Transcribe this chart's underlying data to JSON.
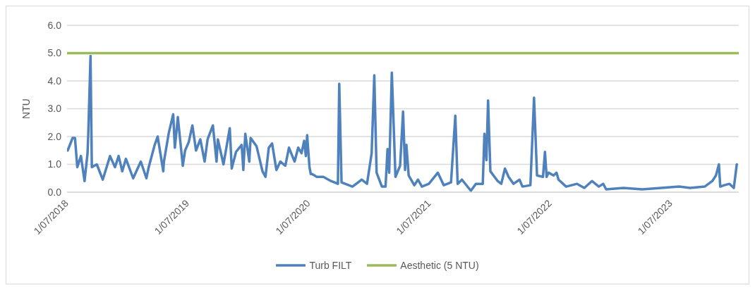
{
  "chart_data": {
    "type": "line",
    "ylabel": "NTU",
    "xlim": [
      "2018-07-01",
      "2024-01-22"
    ],
    "xticks": [
      {
        "value": "2018-07-01",
        "label": "1/07/2018"
      },
      {
        "value": "2019-07-01",
        "label": "1/07/2019"
      },
      {
        "value": "2020-07-01",
        "label": "1/07/2020"
      },
      {
        "value": "2021-07-01",
        "label": "1/07/2021"
      },
      {
        "value": "2022-07-01",
        "label": "1/07/2022"
      },
      {
        "value": "2023-07-01",
        "label": "1/07/2023"
      }
    ],
    "ylim": [
      0,
      6
    ],
    "yticks": [
      {
        "value": 0,
        "label": "0.0"
      },
      {
        "value": 1,
        "label": "1.0"
      },
      {
        "value": 2,
        "label": "2.0"
      },
      {
        "value": 3,
        "label": "3.0"
      },
      {
        "value": 4,
        "label": "4.0"
      },
      {
        "value": 5,
        "label": "5.0"
      },
      {
        "value": 6,
        "label": "6.0"
      }
    ],
    "grid": "y",
    "legend": "bottom",
    "marker": "none",
    "line_style": "solid",
    "series": [
      {
        "name": "Turb FILT",
        "color": "#4f81bd",
        "x": [
          "2018-07-03",
          "2018-07-18",
          "2018-07-25",
          "2018-08-01",
          "2018-08-12",
          "2018-08-23",
          "2018-09-01",
          "2018-09-03",
          "2018-09-10",
          "2018-09-14",
          "2018-09-29",
          "2018-10-17",
          "2018-11-08",
          "2018-11-23",
          "2018-12-04",
          "2018-12-15",
          "2018-12-26",
          "2019-01-17",
          "2019-02-09",
          "2019-02-26",
          "2019-03-05",
          "2019-03-23",
          "2019-04-01",
          "2019-04-18",
          "2019-04-20",
          "2019-05-05",
          "2019-05-18",
          "2019-05-23",
          "2019-06-01",
          "2019-06-16",
          "2019-06-23",
          "2019-07-04",
          "2019-07-15",
          "2019-07-26",
          "2019-08-08",
          "2019-08-21",
          "2019-08-30",
          "2019-09-15",
          "2019-09-26",
          "2019-09-30",
          "2019-10-17",
          "2019-11-05",
          "2019-11-11",
          "2019-11-24",
          "2019-12-11",
          "2019-12-16",
          "2019-12-22",
          "2020-01-03",
          "2020-01-07",
          "2020-01-25",
          "2020-02-12",
          "2020-02-21",
          "2020-03-02",
          "2020-03-12",
          "2020-03-25",
          "2020-04-06",
          "2020-04-21",
          "2020-05-02",
          "2020-05-19",
          "2020-05-30",
          "2020-06-09",
          "2020-06-17",
          "2020-06-22",
          "2020-06-26",
          "2020-07-03",
          "2020-07-07",
          "2020-07-11",
          "2020-07-25",
          "2020-08-14",
          "2020-09-06",
          "2020-09-27",
          "2020-10-01",
          "2020-10-08",
          "2020-11-10",
          "2020-12-08",
          "2020-12-24",
          "2021-01-07",
          "2021-01-15",
          "2021-01-22",
          "2021-02-07",
          "2021-02-18",
          "2021-02-24",
          "2021-03-01",
          "2021-03-09",
          "2021-03-20",
          "2021-04-03",
          "2021-04-12",
          "2021-04-18",
          "2021-04-22",
          "2021-04-29",
          "2021-05-16",
          "2021-05-27",
          "2021-06-08",
          "2021-06-29",
          "2021-07-26",
          "2021-08-13",
          "2021-09-04",
          "2021-09-17",
          "2021-09-24",
          "2021-10-07",
          "2021-11-03",
          "2021-11-18",
          "2021-12-09",
          "2021-12-14",
          "2021-12-20",
          "2021-12-25",
          "2022-01-01",
          "2022-01-23",
          "2022-02-03",
          "2022-02-14",
          "2022-02-25",
          "2022-03-12",
          "2022-03-30",
          "2022-04-08",
          "2022-05-02",
          "2022-05-13",
          "2022-05-22",
          "2022-06-09",
          "2022-06-15",
          "2022-06-20",
          "2022-06-26",
          "2022-07-11",
          "2022-07-20",
          "2022-07-26",
          "2022-08-18",
          "2022-09-20",
          "2022-10-12",
          "2022-11-04",
          "2022-11-25",
          "2022-12-08",
          "2022-12-17",
          "2023-02-07",
          "2023-04-05",
          "2023-06-01",
          "2023-07-26",
          "2023-08-28",
          "2023-10-11",
          "2023-11-03",
          "2023-11-14",
          "2023-11-23",
          "2023-11-27",
          "2023-12-09",
          "2023-12-25",
          "2024-01-07",
          "2024-01-16"
        ],
        "values": [
          1.5,
          1.95,
          1.95,
          0.9,
          1.3,
          0.4,
          1.4,
          2.0,
          4.9,
          0.9,
          1.0,
          0.45,
          1.3,
          0.9,
          1.3,
          0.75,
          1.2,
          0.5,
          1.1,
          0.5,
          0.9,
          1.7,
          2.0,
          0.75,
          1.1,
          2.15,
          2.8,
          1.6,
          2.7,
          0.95,
          1.5,
          1.8,
          2.4,
          1.5,
          1.9,
          1.1,
          1.9,
          2.4,
          1.1,
          1.9,
          1.0,
          2.3,
          0.85,
          1.45,
          1.7,
          0.8,
          2.1,
          1.1,
          1.95,
          1.65,
          0.75,
          0.55,
          1.6,
          1.75,
          0.8,
          1.1,
          0.95,
          1.6,
          1.1,
          1.6,
          1.4,
          1.85,
          1.3,
          2.05,
          0.9,
          0.65,
          0.65,
          0.55,
          0.55,
          0.4,
          0.3,
          3.9,
          0.35,
          0.2,
          0.45,
          0.3,
          1.4,
          4.2,
          0.7,
          0.2,
          0.2,
          1.55,
          0.7,
          4.3,
          0.55,
          0.95,
          2.9,
          0.8,
          1.7,
          0.6,
          0.25,
          0.45,
          0.2,
          0.3,
          0.7,
          0.25,
          0.35,
          2.75,
          0.3,
          0.45,
          0.05,
          0.3,
          0.3,
          2.1,
          1.15,
          3.3,
          0.75,
          0.4,
          0.3,
          0.85,
          0.55,
          0.3,
          0.45,
          0.2,
          0.25,
          3.4,
          0.6,
          0.55,
          1.45,
          0.55,
          0.7,
          0.6,
          0.7,
          0.45,
          0.2,
          0.3,
          0.15,
          0.4,
          0.2,
          0.3,
          0.1,
          0.15,
          0.1,
          0.15,
          0.2,
          0.15,
          0.2,
          0.4,
          0.6,
          1.0,
          0.2,
          0.25,
          0.3,
          0.15,
          1.0
        ]
      }
    ],
    "ref_lines": [
      {
        "axis": "y",
        "value": 5,
        "label": "Aesthetic (5 NTU)",
        "color": "#9bbb59",
        "line_style": "solid"
      }
    ]
  }
}
